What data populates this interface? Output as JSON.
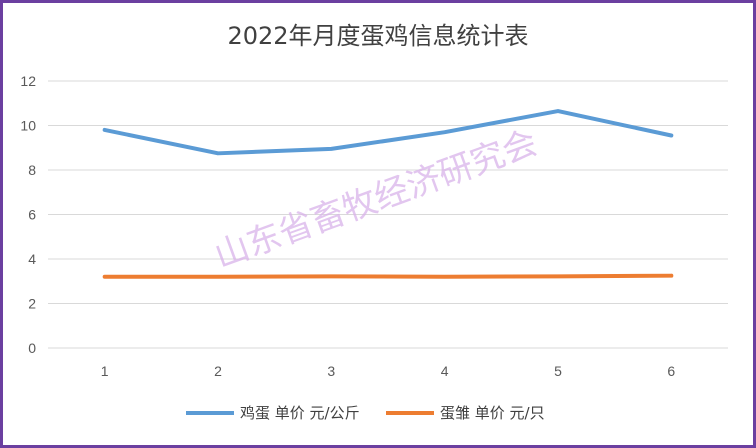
{
  "chart_data": {
    "type": "line",
    "title": "2022年月度蛋鸡信息统计表",
    "categories": [
      "1",
      "2",
      "3",
      "4",
      "5",
      "6"
    ],
    "ylim": [
      0,
      12
    ],
    "yticks": [
      "0",
      "2",
      "4",
      "6",
      "8",
      "10",
      "12"
    ],
    "grid": true,
    "legend_position": "bottom",
    "series": [
      {
        "name": "鸡蛋 单价 元/公斤",
        "color": "#5b9bd5",
        "values": [
          9.8,
          8.75,
          8.95,
          9.7,
          10.65,
          9.55
        ]
      },
      {
        "name": "蛋雏 单价 元/只",
        "color": "#ed7d31",
        "values": [
          3.2,
          3.2,
          3.22,
          3.2,
          3.22,
          3.25
        ]
      }
    ],
    "watermark": "山东省畜牧经济研究会"
  }
}
